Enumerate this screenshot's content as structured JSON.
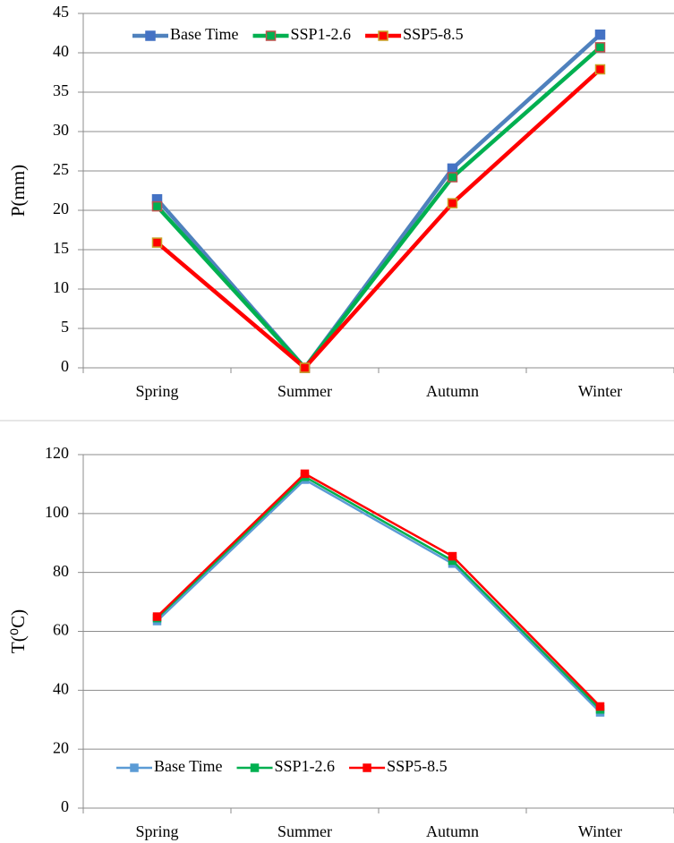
{
  "chart_data": [
    {
      "type": "line",
      "y_label": "P(mm)",
      "categories": [
        "Spring",
        "Summer",
        "Autumn",
        "Winter"
      ],
      "ylim": [
        0,
        45
      ],
      "yticks": [
        0,
        5,
        10,
        15,
        20,
        25,
        30,
        35,
        40,
        45
      ],
      "grid": true,
      "legend": "top",
      "series": [
        {
          "name": "Base Time",
          "color": "#4f81bd",
          "marker_fill": "#4472c4",
          "marker_edge": "#4472c4",
          "values": [
            21.4,
            0,
            25.3,
            42.3
          ]
        },
        {
          "name": "SSP1-2.6",
          "color": "#00b050",
          "marker_fill": "#00b050",
          "marker_edge": "#c0504d",
          "values": [
            20.5,
            0,
            24.2,
            40.7
          ]
        },
        {
          "name": "SSP5-8.5",
          "color": "#ff0000",
          "marker_fill": "#ff0000",
          "marker_edge": "#c9a227",
          "values": [
            15.9,
            0,
            20.9,
            37.9
          ]
        }
      ]
    },
    {
      "type": "line",
      "y_label": "T(⁰C)",
      "categories": [
        "Spring",
        "Summer",
        "Autumn",
        "Winter"
      ],
      "ylim": [
        0,
        120
      ],
      "yticks": [
        0,
        20,
        40,
        60,
        80,
        100,
        120
      ],
      "grid": true,
      "legend": "bottom",
      "series": [
        {
          "name": "Base Time",
          "color": "#5b9bd5",
          "marker_fill": "#5b9bd5",
          "marker_edge": "#5b9bd5",
          "values": [
            63.5,
            111.5,
            83,
            32.5
          ]
        },
        {
          "name": "SSP1-2.6",
          "color": "#00b050",
          "marker_fill": "#00b050",
          "marker_edge": "#00b050",
          "values": [
            64.5,
            112.5,
            84,
            33.5
          ]
        },
        {
          "name": "SSP5-8.5",
          "color": "#ff0000",
          "marker_fill": "#ff0000",
          "marker_edge": "#ff0000",
          "values": [
            65,
            113.5,
            85.5,
            34.5
          ]
        }
      ]
    }
  ]
}
